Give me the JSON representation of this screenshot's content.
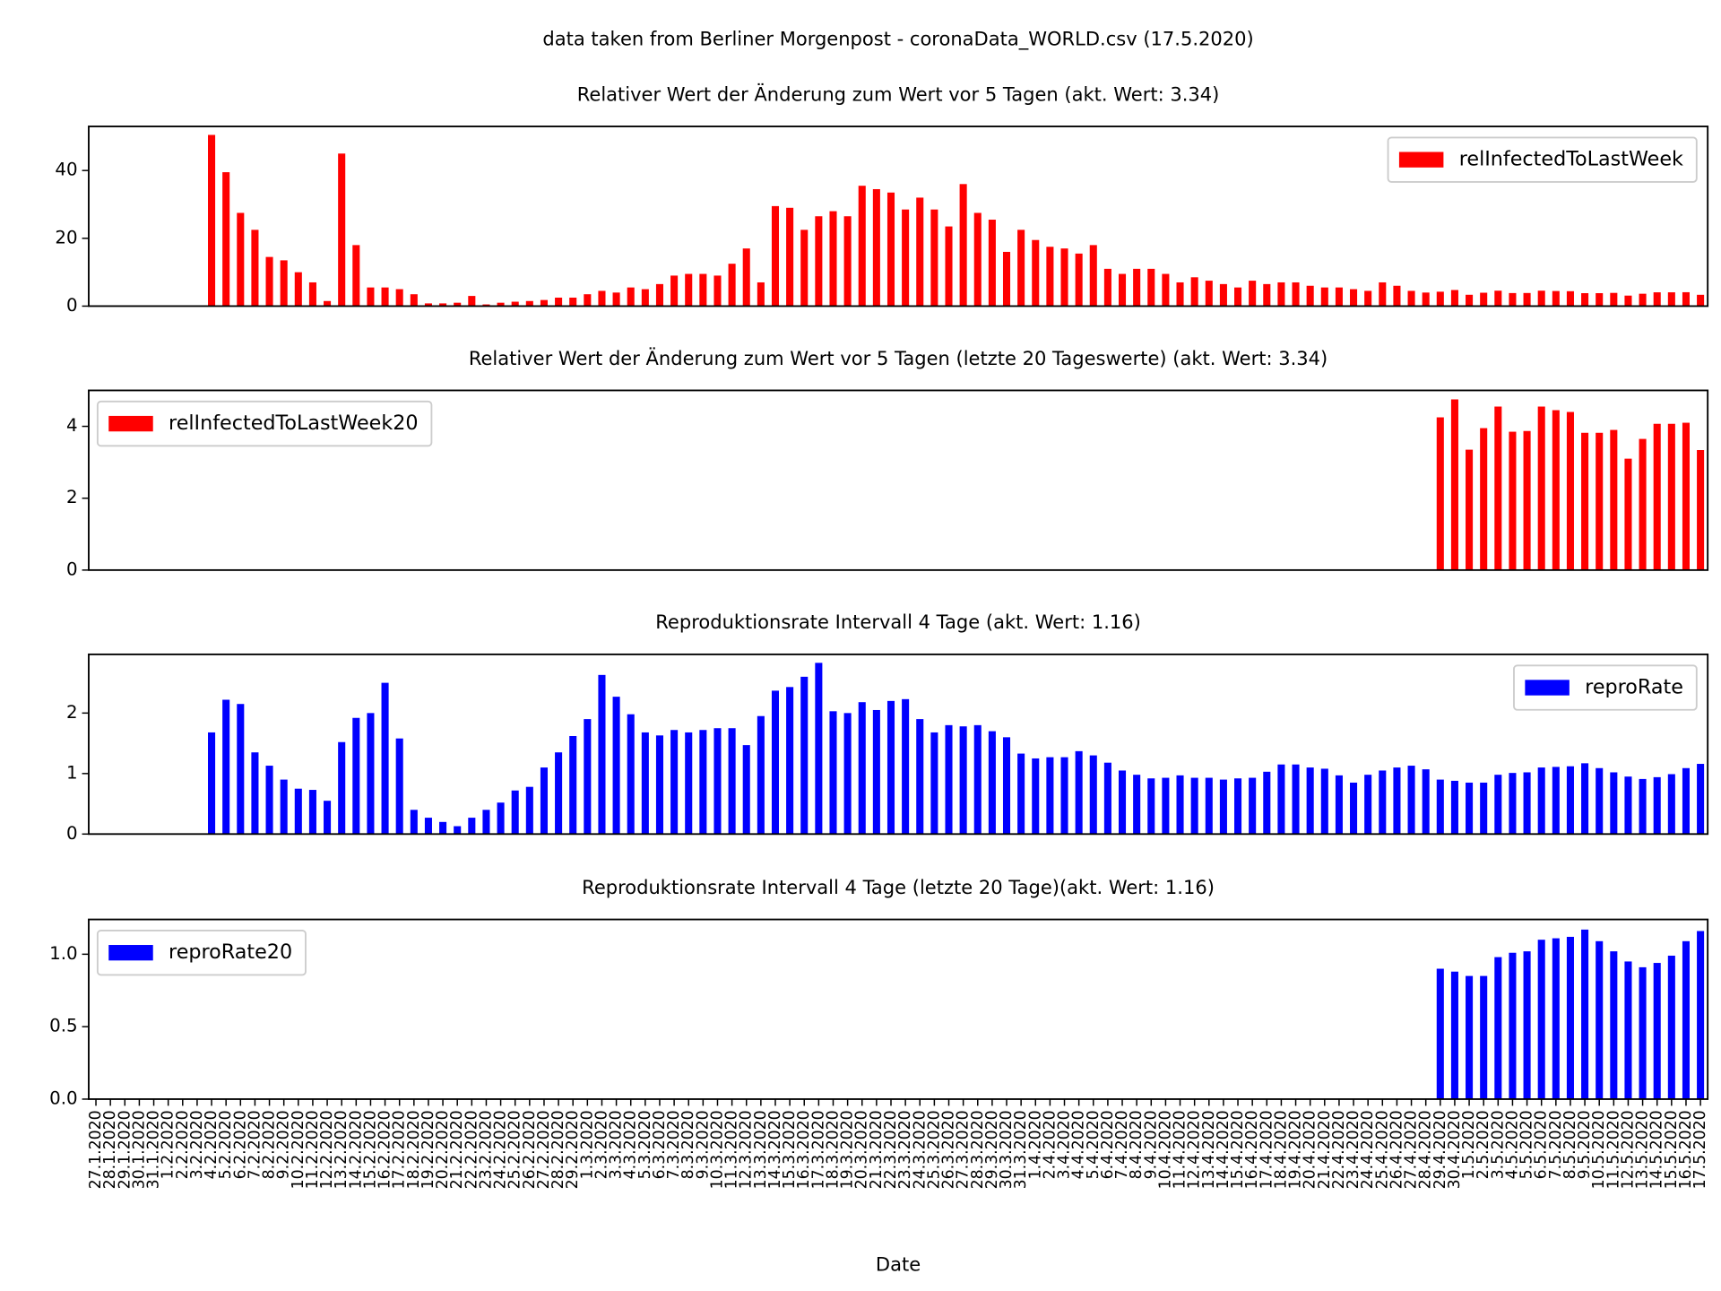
{
  "title": "data taken from Berliner Morgenpost - coronaData_WORLD.csv (17.5.2020)",
  "chart_data": [
    {
      "type": "bar",
      "title": "Relativer Wert der Änderung zum Wert vor 5 Tagen (akt. Wert: 3.34)",
      "series": [
        {
          "name": "relInfectedToLastWeek",
          "color": "#ff0000",
          "values": [
            null,
            null,
            null,
            null,
            null,
            null,
            null,
            null,
            50.5,
            39.5,
            27.5,
            22.5,
            14.5,
            13.5,
            10,
            7,
            1.5,
            45,
            18,
            5.5,
            5.5,
            5,
            3.5,
            0.8,
            0.8,
            1,
            3,
            0.5,
            1,
            1.3,
            1.5,
            1.8,
            2.5,
            2.5,
            3.5,
            4.5,
            4,
            5.5,
            5,
            6.5,
            9,
            9.5,
            9.5,
            9,
            12.5,
            17,
            7,
            29.5,
            29,
            22.5,
            26.5,
            28,
            26.5,
            35.5,
            34.5,
            33.5,
            28.5,
            32,
            28.5,
            23.5,
            36,
            27.5,
            25.5,
            16,
            22.5,
            19.5,
            17.5,
            17,
            15.5,
            18,
            11,
            9.5,
            11,
            11,
            9.5,
            7,
            8.5,
            7.5,
            6.5,
            5.5,
            7.5,
            6.5,
            7,
            7,
            6,
            5.5,
            5.5,
            5,
            4.5,
            7,
            6,
            4.5,
            4,
            4.25,
            4.75,
            3.35,
            3.95,
            4.55,
            3.85,
            3.87,
            4.55,
            4.45,
            4.4,
            3.82,
            3.82,
            3.9,
            3.1,
            3.65,
            4.07,
            4.07,
            4.1,
            3.34
          ]
        }
      ],
      "ylim": [
        0,
        53
      ],
      "yticks": [
        0,
        20,
        40
      ],
      "legend": "upper right"
    },
    {
      "type": "bar",
      "title": "Relativer Wert der Änderung zum Wert vor 5 Tagen (letzte 20 Tageswerte) (akt. Wert: 3.34)",
      "series": [
        {
          "name": "relInfectedToLastWeek20",
          "color": "#ff0000",
          "values": [
            null,
            null,
            null,
            null,
            null,
            null,
            null,
            null,
            null,
            null,
            null,
            null,
            null,
            null,
            null,
            null,
            null,
            null,
            null,
            null,
            null,
            null,
            null,
            null,
            null,
            null,
            null,
            null,
            null,
            null,
            null,
            null,
            null,
            null,
            null,
            null,
            null,
            null,
            null,
            null,
            null,
            null,
            null,
            null,
            null,
            null,
            null,
            null,
            null,
            null,
            null,
            null,
            null,
            null,
            null,
            null,
            null,
            null,
            null,
            null,
            null,
            null,
            null,
            null,
            null,
            null,
            null,
            null,
            null,
            null,
            null,
            null,
            null,
            null,
            null,
            null,
            null,
            null,
            null,
            null,
            null,
            null,
            null,
            null,
            null,
            null,
            null,
            null,
            null,
            null,
            null,
            null,
            null,
            4.25,
            4.75,
            3.35,
            3.95,
            4.55,
            3.85,
            3.87,
            4.55,
            4.45,
            4.4,
            3.82,
            3.82,
            3.9,
            3.1,
            3.65,
            4.07,
            4.07,
            4.1,
            3.34
          ]
        }
      ],
      "ylim": [
        0,
        5
      ],
      "yticks": [
        0,
        2,
        4
      ],
      "legend": "upper left"
    },
    {
      "type": "bar",
      "title": "Reproduktionsrate Intervall 4 Tage (akt. Wert: 1.16)",
      "series": [
        {
          "name": "reproRate",
          "color": "#0000ff",
          "values": [
            null,
            null,
            null,
            null,
            null,
            null,
            null,
            null,
            1.68,
            2.22,
            2.15,
            1.35,
            1.13,
            0.9,
            0.75,
            0.73,
            0.55,
            1.52,
            1.92,
            2.0,
            2.5,
            1.58,
            0.4,
            0.27,
            0.2,
            0.13,
            0.27,
            0.4,
            0.52,
            0.72,
            0.78,
            1.1,
            1.35,
            1.62,
            1.9,
            2.63,
            2.27,
            1.98,
            1.68,
            1.63,
            1.72,
            1.68,
            1.72,
            1.75,
            1.75,
            1.47,
            1.95,
            2.37,
            2.43,
            2.6,
            2.83,
            2.03,
            2.0,
            2.18,
            2.05,
            2.2,
            2.23,
            1.9,
            1.68,
            1.8,
            1.78,
            1.8,
            1.7,
            1.6,
            1.33,
            1.25,
            1.27,
            1.27,
            1.37,
            1.3,
            1.18,
            1.05,
            0.98,
            0.92,
            0.93,
            0.97,
            0.93,
            0.93,
            0.9,
            0.92,
            0.93,
            1.03,
            1.15,
            1.15,
            1.1,
            1.08,
            0.97,
            0.85,
            0.98,
            1.05,
            1.1,
            1.13,
            1.07,
            0.9,
            0.88,
            0.85,
            0.85,
            0.98,
            1.01,
            1.02,
            1.1,
            1.11,
            1.12,
            1.17,
            1.09,
            1.02,
            0.95,
            0.91,
            0.94,
            0.99,
            1.09,
            1.16
          ]
        }
      ],
      "ylim": [
        0,
        2.97
      ],
      "yticks": [
        0,
        1,
        2
      ],
      "legend": "upper right"
    },
    {
      "type": "bar",
      "title": "Reproduktionsrate Intervall 4 Tage (letzte 20 Tage)(akt. Wert: 1.16)",
      "series": [
        {
          "name": "reproRate20",
          "color": "#0000ff",
          "values": [
            null,
            null,
            null,
            null,
            null,
            null,
            null,
            null,
            null,
            null,
            null,
            null,
            null,
            null,
            null,
            null,
            null,
            null,
            null,
            null,
            null,
            null,
            null,
            null,
            null,
            null,
            null,
            null,
            null,
            null,
            null,
            null,
            null,
            null,
            null,
            null,
            null,
            null,
            null,
            null,
            null,
            null,
            null,
            null,
            null,
            null,
            null,
            null,
            null,
            null,
            null,
            null,
            null,
            null,
            null,
            null,
            null,
            null,
            null,
            null,
            null,
            null,
            null,
            null,
            null,
            null,
            null,
            null,
            null,
            null,
            null,
            null,
            null,
            null,
            null,
            null,
            null,
            null,
            null,
            null,
            null,
            null,
            null,
            null,
            null,
            null,
            null,
            null,
            null,
            null,
            null,
            null,
            null,
            0.9,
            0.88,
            0.85,
            0.85,
            0.98,
            1.01,
            1.02,
            1.1,
            1.11,
            1.12,
            1.17,
            1.09,
            1.02,
            0.95,
            0.91,
            0.94,
            0.99,
            1.09,
            1.16
          ]
        }
      ],
      "ylim": [
        0,
        1.24
      ],
      "yticks": [
        {
          "value": 0,
          "label": "0.0"
        },
        0.5,
        {
          "value": 1,
          "label": "1.0"
        }
      ],
      "legend": "upper left",
      "xlabel": "Date",
      "categories": [
        "27.1.2020",
        "28.1.2020",
        "29.1.2020",
        "30.1.2020",
        "31.1.2020",
        "1.2.2020",
        "2.2.2020",
        "3.2.2020",
        "4.2.2020",
        "5.2.2020",
        "6.2.2020",
        "7.2.2020",
        "8.2.2020",
        "9.2.2020",
        "10.2.2020",
        "11.2.2020",
        "12.2.2020",
        "13.2.2020",
        "14.2.2020",
        "15.2.2020",
        "16.2.2020",
        "17.2.2020",
        "18.2.2020",
        "19.2.2020",
        "20.2.2020",
        "21.2.2020",
        "22.2.2020",
        "23.2.2020",
        "24.2.2020",
        "25.2.2020",
        "26.2.2020",
        "27.2.2020",
        "28.2.2020",
        "29.2.2020",
        "1.3.2020",
        "2.3.2020",
        "3.3.2020",
        "4.3.2020",
        "5.3.2020",
        "6.3.2020",
        "7.3.2020",
        "8.3.2020",
        "9.3.2020",
        "10.3.2020",
        "11.3.2020",
        "12.3.2020",
        "13.3.2020",
        "14.3.2020",
        "15.3.2020",
        "16.3.2020",
        "17.3.2020",
        "18.3.2020",
        "19.3.2020",
        "20.3.2020",
        "21.3.2020",
        "22.3.2020",
        "23.3.2020",
        "24.3.2020",
        "25.3.2020",
        "26.3.2020",
        "27.3.2020",
        "28.3.2020",
        "29.3.2020",
        "30.3.2020",
        "31.3.2020",
        "1.4.2020",
        "2.4.2020",
        "3.4.2020",
        "4.4.2020",
        "5.4.2020",
        "6.4.2020",
        "7.4.2020",
        "8.4.2020",
        "9.4.2020",
        "10.4.2020",
        "11.4.2020",
        "12.4.2020",
        "13.4.2020",
        "14.4.2020",
        "15.4.2020",
        "16.4.2020",
        "17.4.2020",
        "18.4.2020",
        "19.4.2020",
        "20.4.2020",
        "21.4.2020",
        "22.4.2020",
        "23.4.2020",
        "24.4.2020",
        "25.4.2020",
        "26.4.2020",
        "27.4.2020",
        "28.4.2020",
        "29.4.2020",
        "30.4.2020",
        "1.5.2020",
        "2.5.2020",
        "3.5.2020",
        "4.5.2020",
        "5.5.2020",
        "6.5.2020",
        "7.5.2020",
        "8.5.2020",
        "9.5.2020",
        "10.5.2020",
        "11.5.2020",
        "12.5.2020",
        "13.5.2020",
        "14.5.2020",
        "15.5.2020",
        "16.5.2020",
        "17.5.2020"
      ]
    }
  ]
}
